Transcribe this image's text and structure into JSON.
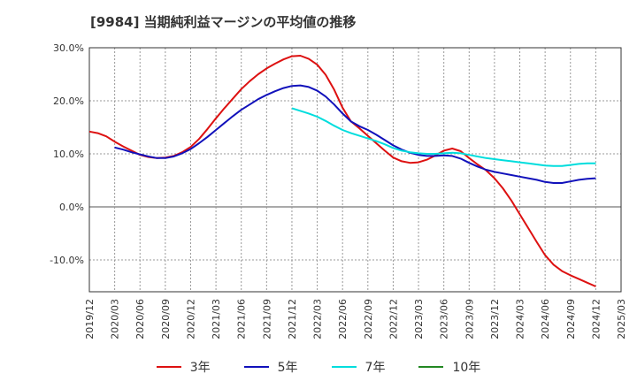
{
  "chart_data": {
    "type": "line",
    "title": "[9984]  当期純利益マージンの平均値の推移",
    "ylim": [
      -16,
      30
    ],
    "y_ticks": [
      30,
      20,
      10,
      0,
      -10
    ],
    "y_tick_labels": [
      "30.0%",
      "20.0%",
      "10.0%",
      "0.0%",
      "-10.0%"
    ],
    "x_tick_labels": [
      "2019/12",
      "2020/03",
      "2020/06",
      "2020/09",
      "2020/12",
      "2021/03",
      "2021/06",
      "2021/09",
      "2021/12",
      "2022/03",
      "2022/06",
      "2022/09",
      "2022/12",
      "2023/03",
      "2023/06",
      "2023/09",
      "2023/12",
      "2024/03",
      "2024/06",
      "2024/09",
      "2024/12",
      "2025/03"
    ],
    "grid": true,
    "legend_position": "bottom",
    "series": [
      {
        "name": "3年",
        "color": "#dd1111",
        "x": [
          "2019/12",
          "2020/01",
          "2020/02",
          "2020/03",
          "2020/04",
          "2020/05",
          "2020/06",
          "2020/07",
          "2020/08",
          "2020/09",
          "2020/10",
          "2020/11",
          "2020/12",
          "2021/01",
          "2021/02",
          "2021/03",
          "2021/04",
          "2021/05",
          "2021/06",
          "2021/07",
          "2021/08",
          "2021/09",
          "2021/10",
          "2021/11",
          "2021/12",
          "2022/01",
          "2022/02",
          "2022/03",
          "2022/04",
          "2022/05",
          "2022/06",
          "2022/07",
          "2022/08",
          "2022/09",
          "2022/10",
          "2022/11",
          "2022/12",
          "2023/01",
          "2023/02",
          "2023/03",
          "2023/04",
          "2023/05",
          "2023/06",
          "2023/07",
          "2023/08",
          "2023/09",
          "2023/10",
          "2023/11",
          "2023/12",
          "2024/01",
          "2024/02",
          "2024/03",
          "2024/04",
          "2024/05",
          "2024/06",
          "2024/07",
          "2024/08",
          "2024/09",
          "2024/10",
          "2024/11",
          "2024/12"
        ],
        "values": [
          14.2,
          13.9,
          13.3,
          12.3,
          11.4,
          10.6,
          9.8,
          9.4,
          9.2,
          9.3,
          9.6,
          10.3,
          11.3,
          12.8,
          14.7,
          16.7,
          18.6,
          20.4,
          22.2,
          23.7,
          25.0,
          26.1,
          27.0,
          27.8,
          28.4,
          28.5,
          27.9,
          26.8,
          24.9,
          22.1,
          18.7,
          16.1,
          14.8,
          13.4,
          12.0,
          10.6,
          9.3,
          8.6,
          8.3,
          8.4,
          8.9,
          9.7,
          10.6,
          11.0,
          10.5,
          9.2,
          8.0,
          6.9,
          5.4,
          3.5,
          1.2,
          -1.4,
          -4.0,
          -6.6,
          -9.1,
          -10.9,
          -12.1,
          -12.9,
          -13.6,
          -14.3,
          -15.0
        ]
      },
      {
        "name": "5年",
        "color": "#1111bb",
        "x": [
          "2020/03",
          "2020/04",
          "2020/05",
          "2020/06",
          "2020/07",
          "2020/08",
          "2020/09",
          "2020/10",
          "2020/11",
          "2020/12",
          "2021/01",
          "2021/02",
          "2021/03",
          "2021/04",
          "2021/05",
          "2021/06",
          "2021/07",
          "2021/08",
          "2021/09",
          "2021/10",
          "2021/11",
          "2021/12",
          "2022/01",
          "2022/02",
          "2022/03",
          "2022/04",
          "2022/05",
          "2022/06",
          "2022/07",
          "2022/08",
          "2022/09",
          "2022/10",
          "2022/11",
          "2022/12",
          "2023/01",
          "2023/02",
          "2023/03",
          "2023/04",
          "2023/05",
          "2023/06",
          "2023/07",
          "2023/08",
          "2023/09",
          "2023/10",
          "2023/11",
          "2023/12",
          "2024/01",
          "2024/02",
          "2024/03",
          "2024/04",
          "2024/05",
          "2024/06",
          "2024/07",
          "2024/08",
          "2024/09",
          "2024/10",
          "2024/11",
          "2024/12"
        ],
        "values": [
          11.2,
          10.8,
          10.3,
          9.9,
          9.5,
          9.2,
          9.2,
          9.5,
          10.1,
          10.9,
          12.0,
          13.2,
          14.5,
          15.8,
          17.1,
          18.3,
          19.3,
          20.3,
          21.1,
          21.8,
          22.4,
          22.8,
          22.9,
          22.6,
          21.9,
          20.8,
          19.3,
          17.6,
          16.1,
          15.2,
          14.5,
          13.6,
          12.6,
          11.6,
          10.8,
          10.2,
          9.8,
          9.6,
          9.6,
          9.7,
          9.6,
          9.1,
          8.3,
          7.6,
          7.0,
          6.6,
          6.3,
          6.0,
          5.7,
          5.4,
          5.1,
          4.7,
          4.5,
          4.5,
          4.8,
          5.1,
          5.3,
          5.4
        ]
      },
      {
        "name": "7年",
        "color": "#00dddd",
        "x": [
          "2021/12",
          "2022/01",
          "2022/02",
          "2022/03",
          "2022/04",
          "2022/05",
          "2022/06",
          "2022/07",
          "2022/08",
          "2022/09",
          "2022/10",
          "2022/11",
          "2022/12",
          "2023/01",
          "2023/02",
          "2023/03",
          "2023/04",
          "2023/05",
          "2023/06",
          "2023/07",
          "2023/08",
          "2023/09",
          "2023/10",
          "2023/11",
          "2023/12",
          "2024/01",
          "2024/02",
          "2024/03",
          "2024/04",
          "2024/05",
          "2024/06",
          "2024/07",
          "2024/08",
          "2024/09",
          "2024/10",
          "2024/11",
          "2024/12"
        ],
        "values": [
          18.6,
          18.1,
          17.6,
          17.0,
          16.2,
          15.3,
          14.5,
          13.9,
          13.4,
          12.9,
          12.4,
          11.8,
          11.1,
          10.6,
          10.3,
          10.1,
          10.0,
          10.0,
          10.1,
          10.2,
          10.1,
          9.8,
          9.5,
          9.2,
          9.0,
          8.8,
          8.6,
          8.4,
          8.2,
          8.0,
          7.8,
          7.7,
          7.7,
          7.9,
          8.1,
          8.2,
          8.2
        ]
      },
      {
        "name": "10年",
        "color": "#228822",
        "x": [],
        "values": []
      }
    ]
  }
}
